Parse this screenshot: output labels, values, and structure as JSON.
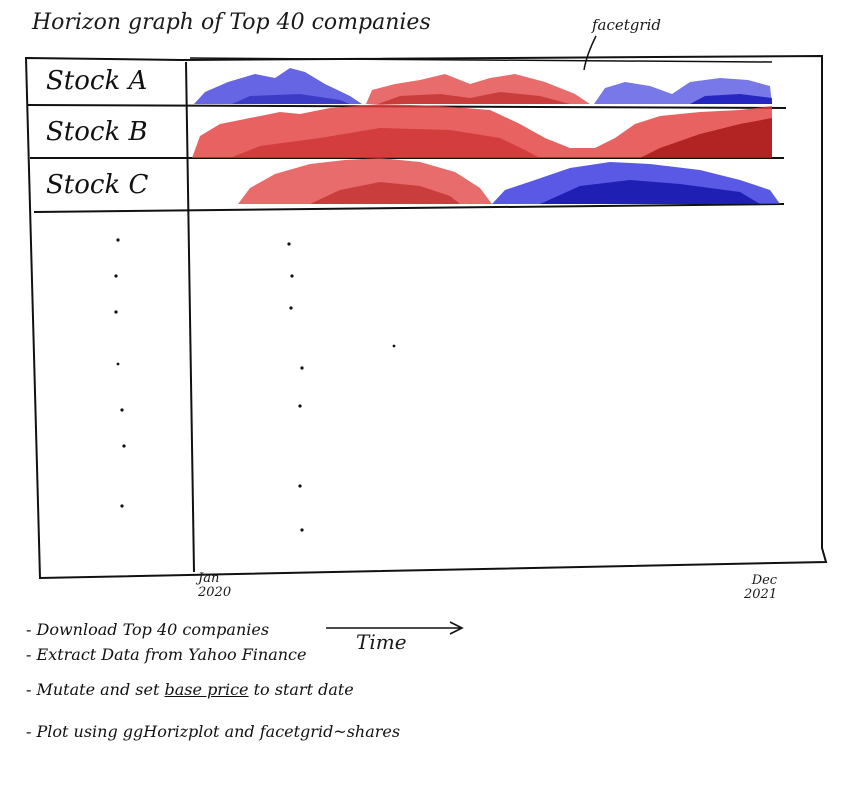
{
  "title": "Horizon graph of Top 40 companies",
  "annotation": "facetgrid",
  "rows": [
    {
      "label": "Stock A"
    },
    {
      "label": "Stock B"
    },
    {
      "label": "Stock C"
    }
  ],
  "x_axis": {
    "start_month": "Jan",
    "start_year": "2020",
    "end_month": "Dec",
    "end_year": "2021",
    "label": "Time"
  },
  "notes": [
    "- Download Top 40 companies",
    "- Extract Data from Yahoo Finance",
    "- Mutate and set",
    "base price",
    "to start date",
    "- Plot using ggHorizplot and facetgrid~shares"
  ],
  "colors": {
    "positive": "#e23b3b",
    "positive_dark": "#a81818",
    "negative": "#3b3bd8",
    "negative_dark": "#1414a8",
    "ink": "#111111"
  }
}
